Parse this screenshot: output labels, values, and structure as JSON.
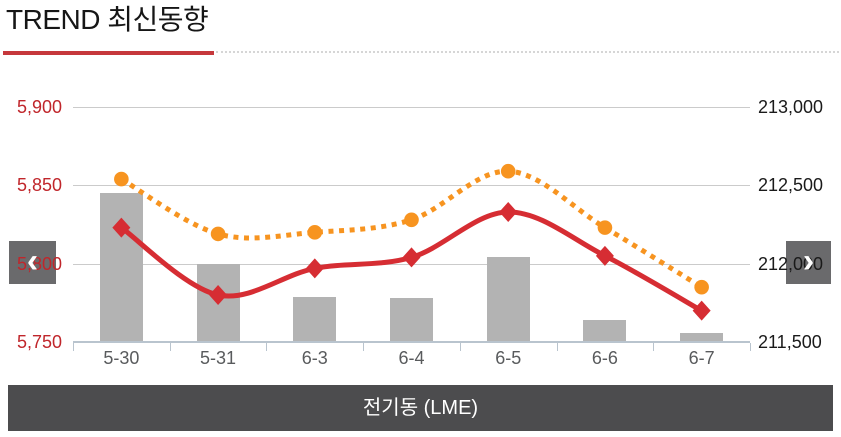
{
  "header": {
    "title": "TREND 최신동향"
  },
  "carousel": {
    "prev_icon": "‹",
    "next_icon": "›"
  },
  "footer": {
    "label": "전기동 (LME)"
  },
  "chart_data": {
    "type": "combo-bar-line",
    "title": "전기동 (LME)",
    "categories": [
      "5-30",
      "5-31",
      "6-3",
      "6-4",
      "6-5",
      "6-6",
      "6-7"
    ],
    "series": [
      {
        "name": "bars-gray",
        "type": "bar",
        "axis": "left",
        "color": "#b3b3b3",
        "values": [
          5845,
          5800,
          5779,
          5778,
          5804,
          5764,
          5756
        ]
      },
      {
        "name": "line-solid-red",
        "type": "line",
        "dash": "solid",
        "marker": "diamond",
        "axis": "left",
        "color": "#d62d33",
        "values": [
          5823,
          5780,
          5797,
          5804,
          5833,
          5805,
          5770
        ]
      },
      {
        "name": "line-dotted-orange",
        "type": "line",
        "dash": "dotted",
        "marker": "circle",
        "axis": "right",
        "color": "#f79420",
        "values": [
          212540,
          212190,
          212200,
          212280,
          212590,
          212230,
          211850
        ]
      }
    ],
    "left_axis": {
      "min": 5750,
      "max": 5900,
      "tick_labels": [
        "5,900",
        "5,850",
        "5,800",
        "5,750"
      ],
      "color": "#c0262b"
    },
    "right_axis": {
      "min": 211500,
      "max": 213000,
      "tick_labels": [
        "213,000",
        "212,500",
        "212,000",
        "211,500"
      ],
      "color": "#1a1a1a"
    },
    "grid": true,
    "legend": "none"
  }
}
